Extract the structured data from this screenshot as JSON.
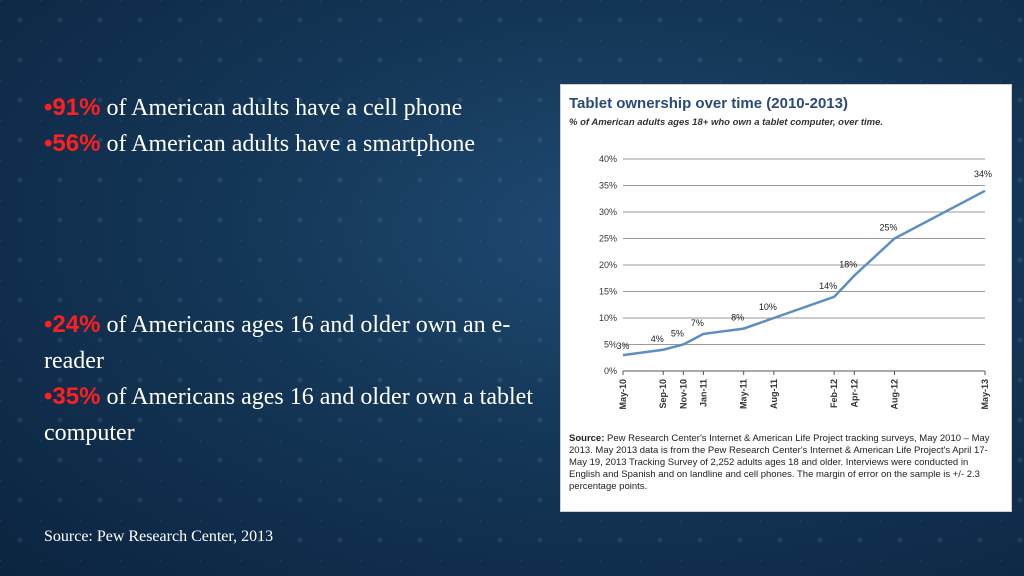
{
  "bullets_block1": [
    {
      "bullet": "•",
      "highlight": "91%",
      "text": " of American adults have a cell phone"
    },
    {
      "bullet": "•",
      "highlight": "56%",
      "text": " of American adults have a smartphone"
    }
  ],
  "bullets_block2": [
    {
      "bullet": "•",
      "highlight": "24%",
      "text": " of Americans ages 16 and older own an e-reader"
    },
    {
      "bullet": "•",
      "highlight": "35%",
      "text": " of Americans ages 16 and older own a tablet computer"
    }
  ],
  "footer_source": "Source: Pew Research Center, 2013",
  "colors": {
    "highlight": "#ff1f1f",
    "line": "#5b8ec4",
    "title": "#2b4a7a"
  },
  "chart_data": {
    "type": "line",
    "title": "Tablet ownership over time (2010-2013)",
    "subtitle": "% of American adults ages 18+ who own a tablet computer, over time.",
    "y_ticks": [
      "40%",
      "35%",
      "30%",
      "25%",
      "20%",
      "15%",
      "10%",
      "5%",
      "0%"
    ],
    "ylim": [
      0,
      40
    ],
    "x_ticks": [
      "May-10",
      "Sep-10",
      "Nov-10",
      "Jan-11",
      "May-11",
      "Aug-11",
      "Feb-12",
      "Apr-12",
      "Aug-12",
      "May-13"
    ],
    "series": [
      {
        "points": [
          {
            "x": "2010-05",
            "y": 3,
            "label": "3%"
          },
          {
            "x": "2010-09",
            "y": 4,
            "label": "4%"
          },
          {
            "x": "2010-11",
            "y": 5,
            "label": "5%"
          },
          {
            "x": "2011-01",
            "y": 7,
            "label": "7%"
          },
          {
            "x": "2011-05",
            "y": 8,
            "label": "8%"
          },
          {
            "x": "2011-08",
            "y": 10,
            "label": "10%"
          },
          {
            "x": "2012-02",
            "y": 14,
            "label": "14%"
          },
          {
            "x": "2012-04",
            "y": 18,
            "label": "18%"
          },
          {
            "x": "2012-08",
            "y": 25,
            "label": "25%"
          },
          {
            "x": "2013-05",
            "y": 34,
            "label": "34%"
          }
        ]
      }
    ],
    "source_label": "Source:",
    "source_text": " Pew Research Center's Internet & American Life Project tracking surveys, May 2010 – May 2013. May 2013 data is from the Pew Research Center's Internet & American Life Project's April 17-May 19, 2013 Tracking Survey of 2,252 adults ages 18 and older. Interviews were conducted in English and Spanish and on landline and cell phones. The margin of error on the sample is +/- 2.3 percentage points."
  }
}
